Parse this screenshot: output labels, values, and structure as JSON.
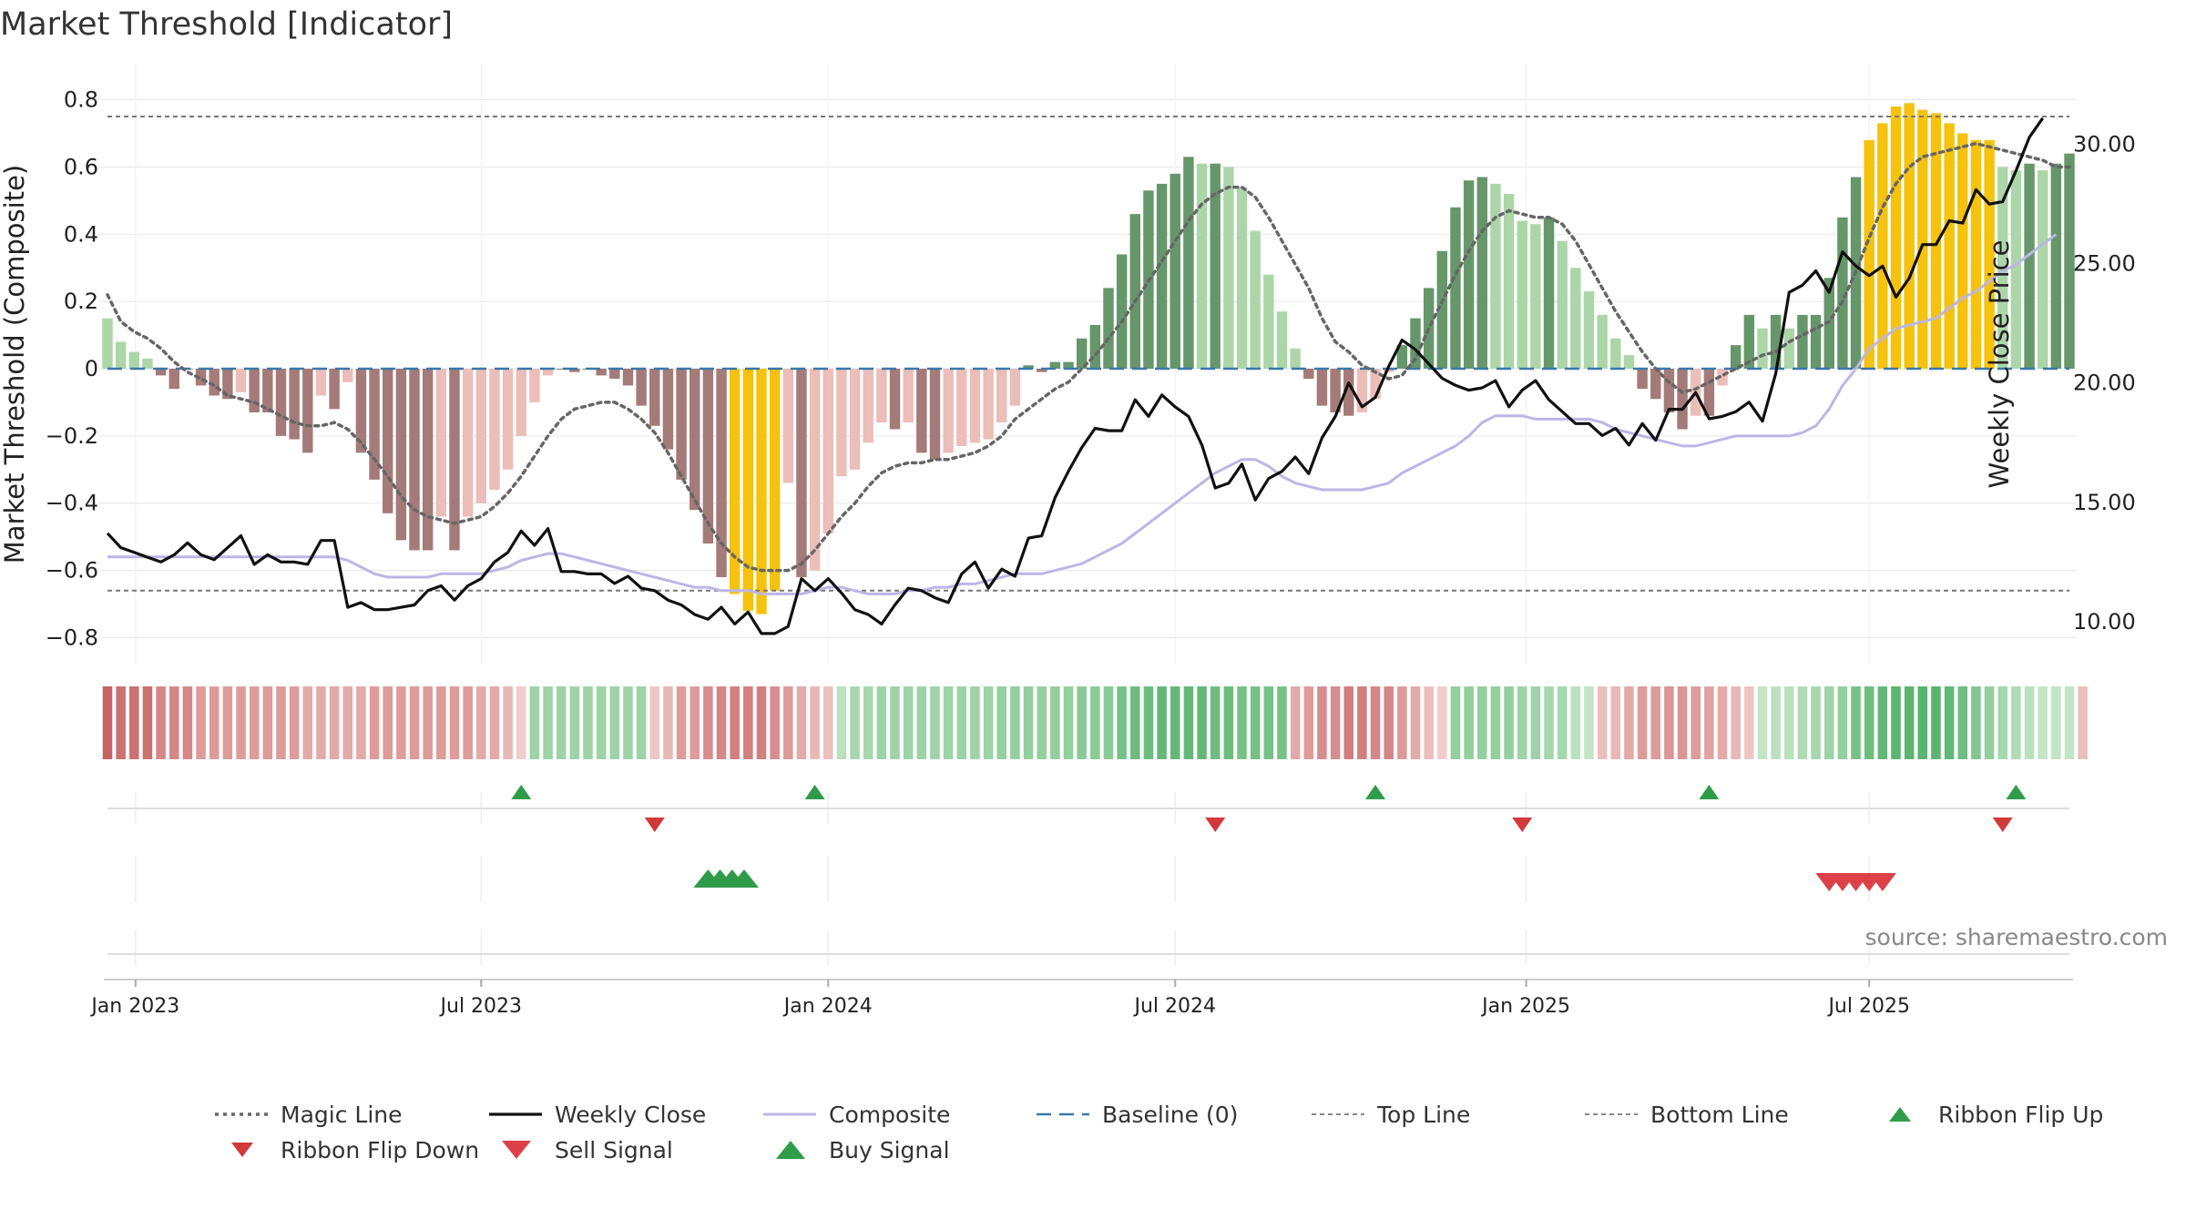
{
  "chart_data": {
    "type": "bar",
    "title": "Market Threshold [Indicator]",
    "ylabel_left": "Market Threshold (Composite)",
    "ylabel_right": "Weekly Close Price",
    "source": "source: sharemaestro.com",
    "left_axis": {
      "min": -0.88,
      "max": 0.88,
      "ticks": [
        -0.8,
        -0.6,
        -0.4,
        -0.2,
        0,
        0.2,
        0.4,
        0.6,
        0.8
      ],
      "tick_labels": [
        "−0.8",
        "−0.6",
        "−0.4",
        "−0.2",
        "0",
        "0.2",
        "0.4",
        "0.6",
        "0.8"
      ]
    },
    "right_axis": {
      "min": 8.2,
      "max": 33.0,
      "ticks": [
        10,
        15,
        20,
        25,
        30
      ],
      "tick_labels": [
        "10.00",
        "15.00",
        "20.00",
        "25.00",
        "30.00"
      ]
    },
    "x_axis": {
      "first_date": "2022-12-18",
      "weeks": 144,
      "ticks": [
        {
          "label": "Jan 2023",
          "week": 2.1
        },
        {
          "label": "Jul 2023",
          "week": 28.0
        },
        {
          "label": "Jan 2024",
          "week": 54.0
        },
        {
          "label": "Jul 2024",
          "week": 80.0
        },
        {
          "label": "Jan 2025",
          "week": 106.3
        },
        {
          "label": "Jul 2025",
          "week": 132.0
        }
      ]
    },
    "top_line": 0.75,
    "bottom_line": -0.66,
    "baseline": 0,
    "colors": {
      "strong_up": "#66976a",
      "weak_up": "#acd6a8",
      "strong_down": "#a47b78",
      "weak_down": "#ebbeb9",
      "extreme": "#f5c20d",
      "magic": "#666666",
      "close": "#111111",
      "composite": "#bcb6e6",
      "baseline": "#3a78a8",
      "ribbon_up": "#2e9c48",
      "ribbon_down": "#d03a3a"
    },
    "series": [
      {
        "name": "Composite (bars)",
        "values": [
          0.15,
          0.08,
          0.05,
          0.03,
          -0.02,
          -0.06,
          0,
          -0.05,
          -0.08,
          -0.09,
          -0.07,
          -0.13,
          -0.13,
          -0.2,
          -0.21,
          -0.25,
          -0.08,
          -0.12,
          -0.04,
          -0.25,
          -0.33,
          -0.43,
          -0.51,
          -0.54,
          -0.54,
          -0.44,
          -0.54,
          -0.44,
          -0.4,
          -0.36,
          -0.3,
          -0.2,
          -0.1,
          -0.02,
          0,
          -0.01,
          0,
          -0.02,
          -0.03,
          -0.05,
          -0.11,
          -0.17,
          -0.24,
          -0.33,
          -0.42,
          -0.52,
          -0.62,
          -0.67,
          -0.72,
          -0.73,
          -0.66,
          -0.34,
          -0.62,
          -0.6,
          -0.49,
          -0.32,
          -0.3,
          -0.22,
          -0.16,
          -0.18,
          -0.16,
          -0.25,
          -0.27,
          -0.25,
          -0.23,
          -0.22,
          -0.21,
          -0.16,
          -0.11,
          0.01,
          -0.01,
          0.02,
          0.02,
          0.09,
          0.13,
          0.24,
          0.34,
          0.46,
          0.53,
          0.55,
          0.58,
          0.63,
          0.61,
          0.61,
          0.6,
          0.54,
          0.41,
          0.28,
          0.17,
          0.06,
          -0.03,
          -0.11,
          -0.13,
          -0.14,
          -0.13,
          -0.09,
          -0.01,
          0.07,
          0.15,
          0.24,
          0.35,
          0.48,
          0.56,
          0.57,
          0.55,
          0.52,
          0.44,
          0.43,
          0.45,
          0.38,
          0.3,
          0.23,
          0.16,
          0.09,
          0.04,
          -0.06,
          -0.09,
          -0.13,
          -0.18,
          -0.14,
          -0.14,
          -0.05,
          0.07,
          0.16,
          0.12,
          0.16,
          0.12,
          0.16,
          0.16,
          0.27,
          0.45,
          0.57,
          0.68,
          0.73,
          0.78,
          0.79,
          0.77,
          0.76,
          0.73,
          0.7,
          0.68,
          0.68,
          0.6,
          0.59,
          0.61,
          0.59,
          0.61,
          0.64
        ]
      },
      {
        "name": "Magic Line",
        "values": [
          0.22,
          0.14,
          0.11,
          0.09,
          0.06,
          0.02,
          -0.01,
          -0.03,
          -0.05,
          -0.08,
          -0.09,
          -0.1,
          -0.12,
          -0.14,
          -0.16,
          -0.17,
          -0.17,
          -0.16,
          -0.18,
          -0.22,
          -0.27,
          -0.32,
          -0.38,
          -0.42,
          -0.44,
          -0.45,
          -0.46,
          -0.45,
          -0.44,
          -0.41,
          -0.37,
          -0.32,
          -0.26,
          -0.2,
          -0.15,
          -0.12,
          -0.11,
          -0.1,
          -0.1,
          -0.12,
          -0.15,
          -0.19,
          -0.25,
          -0.32,
          -0.39,
          -0.46,
          -0.52,
          -0.56,
          -0.59,
          -0.6,
          -0.6,
          -0.6,
          -0.58,
          -0.54,
          -0.49,
          -0.44,
          -0.4,
          -0.35,
          -0.31,
          -0.29,
          -0.28,
          -0.28,
          -0.27,
          -0.27,
          -0.26,
          -0.25,
          -0.23,
          -0.2,
          -0.15,
          -0.12,
          -0.09,
          -0.06,
          -0.04,
          0,
          0.04,
          0.09,
          0.14,
          0.2,
          0.26,
          0.32,
          0.38,
          0.44,
          0.49,
          0.52,
          0.54,
          0.54,
          0.51,
          0.45,
          0.38,
          0.31,
          0.24,
          0.15,
          0.08,
          0.05,
          0.01,
          -0.01,
          -0.03,
          -0.02,
          0.03,
          0.12,
          0.2,
          0.28,
          0.35,
          0.41,
          0.45,
          0.47,
          0.46,
          0.45,
          0.45,
          0.43,
          0.38,
          0.31,
          0.24,
          0.17,
          0.11,
          0.05,
          0,
          -0.04,
          -0.07,
          -0.06,
          -0.04,
          -0.02,
          0,
          0.02,
          0.04,
          0.05,
          0.08,
          0.1,
          0.12,
          0.14,
          0.2,
          0.29,
          0.39,
          0.48,
          0.55,
          0.6,
          0.63,
          0.64,
          0.65,
          0.66,
          0.67,
          0.66,
          0.65,
          0.64,
          0.63,
          0.62,
          0.6,
          0.6
        ]
      },
      {
        "name": "Weekly Close",
        "values": [
          13.7,
          13.1,
          12.9,
          12.7,
          12.5,
          12.8,
          13.3,
          12.8,
          12.6,
          13.1,
          13.6,
          12.4,
          12.8,
          12.5,
          12.5,
          12.4,
          13.4,
          13.4,
          10.6,
          10.8,
          10.5,
          10.5,
          10.6,
          10.7,
          11.3,
          11.5,
          10.9,
          11.5,
          11.8,
          12.5,
          12.9,
          13.8,
          13.2,
          13.9,
          12.1,
          12.1,
          12.0,
          12.0,
          11.6,
          11.9,
          11.4,
          11.3,
          10.9,
          10.7,
          10.3,
          10.1,
          10.6,
          9.9,
          10.4,
          9.5,
          9.5,
          9.8,
          11.8,
          11.3,
          11.8,
          11.2,
          10.5,
          10.3,
          9.9,
          10.7,
          11.4,
          11.3,
          11.0,
          10.8,
          12.0,
          12.5,
          11.4,
          12.2,
          11.9,
          13.5,
          13.6,
          15.2,
          16.3,
          17.3,
          18.1,
          18.0,
          18.0,
          19.3,
          18.6,
          19.5,
          19.0,
          18.6,
          17.4,
          15.6,
          15.8,
          16.6,
          15.1,
          16.0,
          16.3,
          16.9,
          16.2,
          17.7,
          18.6,
          20.0,
          19.0,
          19.4,
          20.7,
          21.8,
          21.4,
          20.8,
          20.2,
          19.9,
          19.7,
          19.8,
          20.1,
          19.0,
          19.7,
          20.1,
          19.3,
          18.8,
          18.3,
          18.3,
          17.8,
          18.1,
          17.4,
          18.3,
          17.6,
          18.9,
          18.9,
          19.6,
          18.5,
          18.6,
          18.8,
          19.2,
          18.4,
          20.4,
          23.8,
          24.1,
          24.7,
          23.8,
          25.5,
          24.9,
          24.5,
          24.9,
          23.6,
          24.4,
          25.8,
          25.8,
          26.8,
          26.7,
          28.1,
          27.5,
          27.6,
          28.9,
          30.3,
          31.1
        ]
      },
      {
        "name": "Composite",
        "values": [
          -0.56,
          -0.56,
          -0.56,
          -0.56,
          -0.56,
          -0.56,
          -0.56,
          -0.56,
          -0.56,
          -0.56,
          -0.56,
          -0.56,
          -0.56,
          -0.56,
          -0.56,
          -0.56,
          -0.56,
          -0.56,
          -0.57,
          -0.59,
          -0.61,
          -0.62,
          -0.62,
          -0.62,
          -0.62,
          -0.61,
          -0.61,
          -0.61,
          -0.61,
          -0.6,
          -0.59,
          -0.57,
          -0.56,
          -0.55,
          -0.55,
          -0.56,
          -0.57,
          -0.58,
          -0.59,
          -0.6,
          -0.61,
          -0.62,
          -0.63,
          -0.64,
          -0.65,
          -0.65,
          -0.66,
          -0.66,
          -0.66,
          -0.67,
          -0.67,
          -0.67,
          -0.67,
          -0.66,
          -0.65,
          -0.65,
          -0.66,
          -0.67,
          -0.67,
          -0.67,
          -0.66,
          -0.66,
          -0.65,
          -0.65,
          -0.64,
          -0.64,
          -0.63,
          -0.62,
          -0.61,
          -0.61,
          -0.61,
          -0.6,
          -0.59,
          -0.58,
          -0.56,
          -0.54,
          -0.52,
          -0.49,
          -0.46,
          -0.43,
          -0.4,
          -0.37,
          -0.34,
          -0.31,
          -0.29,
          -0.27,
          -0.27,
          -0.29,
          -0.32,
          -0.34,
          -0.35,
          -0.36,
          -0.36,
          -0.36,
          -0.36,
          -0.35,
          -0.34,
          -0.31,
          -0.29,
          -0.27,
          -0.25,
          -0.23,
          -0.2,
          -0.16,
          -0.14,
          -0.14,
          -0.14,
          -0.15,
          -0.15,
          -0.15,
          -0.15,
          -0.15,
          -0.16,
          -0.18,
          -0.19,
          -0.2,
          -0.21,
          -0.22,
          -0.23,
          -0.23,
          -0.22,
          -0.21,
          -0.2,
          -0.2,
          -0.2,
          -0.2,
          -0.2,
          -0.19,
          -0.17,
          -0.12,
          -0.05,
          0,
          0.06,
          0.09,
          0.12,
          0.13,
          0.14,
          0.15,
          0.18,
          0.21,
          0.23,
          0.26,
          0.29,
          0.31,
          0.34,
          0.37,
          0.4
        ]
      },
      {
        "name": "Ribbon",
        "values": [
          -0.95,
          -0.85,
          -0.85,
          -0.85,
          -0.7,
          -0.7,
          -0.7,
          -0.55,
          -0.55,
          -0.55,
          -0.55,
          -0.55,
          -0.55,
          -0.55,
          -0.55,
          -0.45,
          -0.45,
          -0.45,
          -0.45,
          -0.45,
          -0.55,
          -0.55,
          -0.55,
          -0.55,
          -0.55,
          -0.55,
          -0.55,
          -0.55,
          -0.45,
          -0.45,
          -0.35,
          -0.2,
          0.5,
          0.5,
          0.5,
          0.5,
          0.5,
          0.5,
          0.5,
          0.5,
          0.5,
          -0.25,
          -0.35,
          -0.55,
          -0.55,
          -0.65,
          -0.7,
          -0.75,
          -0.75,
          -0.75,
          -0.65,
          -0.55,
          -0.45,
          -0.35,
          -0.3,
          0.35,
          0.45,
          0.45,
          0.5,
          0.5,
          0.5,
          0.5,
          0.5,
          0.5,
          0.5,
          0.5,
          0.5,
          0.55,
          0.55,
          0.55,
          0.55,
          0.55,
          0.55,
          0.6,
          0.6,
          0.6,
          0.7,
          0.75,
          0.75,
          0.8,
          0.8,
          0.8,
          0.8,
          0.75,
          0.75,
          0.7,
          0.7,
          0.7,
          0.7,
          -0.45,
          -0.55,
          -0.65,
          -0.65,
          -0.75,
          -0.75,
          -0.7,
          -0.7,
          -0.55,
          -0.45,
          -0.3,
          -0.2,
          0.55,
          0.55,
          0.55,
          0.55,
          0.55,
          0.5,
          0.5,
          0.45,
          0.45,
          0.35,
          0.3,
          -0.3,
          -0.35,
          -0.45,
          -0.55,
          -0.55,
          -0.6,
          -0.6,
          -0.55,
          -0.5,
          -0.45,
          -0.35,
          -0.25,
          0.3,
          0.35,
          0.35,
          0.4,
          0.45,
          0.5,
          0.55,
          0.7,
          0.75,
          0.8,
          0.85,
          0.85,
          0.85,
          0.85,
          0.8,
          0.75,
          0.65,
          0.55,
          0.45,
          0.4,
          0.35,
          0.3,
          0.3,
          0.3,
          -0.3
        ]
      }
    ],
    "ribbon_flip_up_weeks": [
      31,
      53,
      95,
      120,
      143
    ],
    "ribbon_flip_down_weeks": [
      41,
      83,
      106,
      142
    ],
    "buy_signal_weeks": [
      45.0,
      45.9,
      46.8,
      47.7
    ],
    "sell_signal_weeks": [
      129.0,
      130.0,
      131.0,
      132.0,
      133.0
    ],
    "legend": [
      {
        "label": "Magic Line",
        "marker": "dotted"
      },
      {
        "label": "Weekly Close",
        "marker": "solid"
      },
      {
        "label": "Composite",
        "marker": "composite"
      },
      {
        "label": "Baseline (0)",
        "marker": "dashed"
      },
      {
        "label": "Top Line",
        "marker": "thin-dotted"
      },
      {
        "label": "Bottom Line",
        "marker": "thin-dotted"
      },
      {
        "label": "Ribbon Flip Up",
        "marker": "small-up"
      },
      {
        "label": "Ribbon Flip Down",
        "marker": "small-down"
      },
      {
        "label": "Sell Signal",
        "marker": "big-down"
      },
      {
        "label": "Buy Signal",
        "marker": "big-up"
      }
    ]
  }
}
